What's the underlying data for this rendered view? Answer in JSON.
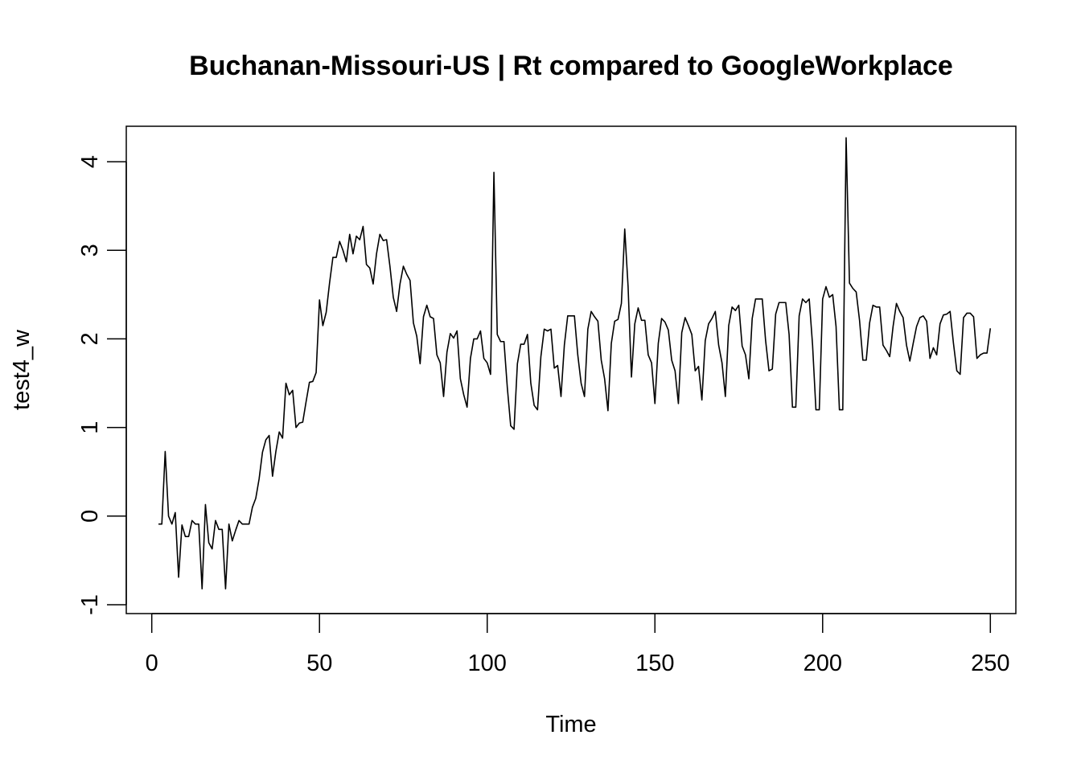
{
  "chart_data": {
    "type": "line",
    "title": "Buchanan-Missouri-US | Rt compared to GoogleWorkplace",
    "xlabel": "Time",
    "ylabel": "test4_w",
    "xlim": [
      -7.6,
      257.6
    ],
    "ylim": [
      -1.1,
      4.4
    ],
    "x_ticks": [
      0,
      50,
      100,
      150,
      200,
      250
    ],
    "x_tick_labels": [
      "0",
      "50",
      "100",
      "150",
      "200",
      "250"
    ],
    "y_ticks": [
      -1,
      0,
      1,
      2,
      3,
      4
    ],
    "y_tick_labels": [
      "-1",
      "0",
      "1",
      "2",
      "3",
      "4"
    ],
    "grid": false,
    "legend": "none",
    "line_color": "#000000",
    "series": [
      {
        "x_start": 2,
        "x_step": 1,
        "values": [
          -0.09,
          -0.09,
          0.73,
          0.0,
          -0.09,
          0.04,
          -0.69,
          -0.1,
          -0.23,
          -0.23,
          -0.05,
          -0.09,
          -0.09,
          -0.82,
          0.13,
          -0.3,
          -0.37,
          -0.05,
          -0.15,
          -0.15,
          -0.82,
          -0.09,
          -0.28,
          -0.16,
          -0.05,
          -0.09,
          -0.09,
          -0.09,
          0.1,
          0.2,
          0.42,
          0.72,
          0.86,
          0.91,
          0.45,
          0.73,
          0.95,
          0.88,
          1.5,
          1.37,
          1.42,
          1.0,
          1.05,
          1.06,
          1.29,
          1.51,
          1.52,
          1.62,
          2.44,
          2.15,
          2.3,
          2.63,
          2.92,
          2.92,
          3.1,
          3.0,
          2.87,
          3.18,
          2.96,
          3.16,
          3.12,
          3.27,
          2.84,
          2.8,
          2.62,
          2.96,
          3.18,
          3.11,
          3.12,
          2.82,
          2.47,
          2.31,
          2.62,
          2.82,
          2.73,
          2.66,
          2.18,
          2.03,
          1.72,
          2.25,
          2.38,
          2.25,
          2.23,
          1.82,
          1.73,
          1.35,
          1.85,
          2.06,
          2.01,
          2.09,
          1.55,
          1.37,
          1.23,
          1.78,
          2.0,
          2.0,
          2.09,
          1.78,
          1.73,
          1.6,
          3.88,
          2.05,
          1.97,
          1.97,
          1.45,
          1.02,
          0.98,
          1.72,
          1.94,
          1.94,
          2.05,
          1.5,
          1.25,
          1.2,
          1.8,
          2.11,
          2.09,
          2.11,
          1.67,
          1.7,
          1.35,
          1.93,
          2.26,
          2.26,
          2.26,
          1.82,
          1.5,
          1.35,
          2.11,
          2.31,
          2.25,
          2.2,
          1.76,
          1.55,
          1.19,
          1.95,
          2.2,
          2.22,
          2.4,
          3.24,
          2.59,
          1.57,
          2.17,
          2.35,
          2.21,
          2.21,
          1.82,
          1.73,
          1.27,
          1.95,
          2.23,
          2.19,
          2.1,
          1.76,
          1.64,
          1.27,
          2.07,
          2.24,
          2.15,
          2.05,
          1.64,
          1.69,
          1.31,
          1.98,
          2.17,
          2.23,
          2.31,
          1.93,
          1.73,
          1.35,
          2.15,
          2.36,
          2.32,
          2.38,
          1.92,
          1.82,
          1.55,
          2.23,
          2.45,
          2.45,
          2.45,
          1.98,
          1.64,
          1.66,
          2.28,
          2.41,
          2.41,
          2.41,
          2.05,
          1.23,
          1.23,
          2.26,
          2.45,
          2.41,
          2.45,
          1.93,
          1.2,
          1.2,
          2.45,
          2.59,
          2.47,
          2.5,
          2.14,
          1.2,
          1.2,
          4.27,
          2.63,
          2.57,
          2.53,
          2.21,
          1.76,
          1.76,
          2.18,
          2.38,
          2.36,
          2.36,
          1.93,
          1.87,
          1.8,
          2.14,
          2.4,
          2.31,
          2.24,
          1.93,
          1.75,
          1.95,
          2.14,
          2.24,
          2.26,
          2.2,
          1.78,
          1.9,
          1.82,
          2.17,
          2.27,
          2.28,
          2.31,
          1.95,
          1.64,
          1.6,
          2.24,
          2.29,
          2.29,
          2.25,
          1.78,
          1.82,
          1.84,
          1.84,
          2.12
        ]
      }
    ]
  }
}
